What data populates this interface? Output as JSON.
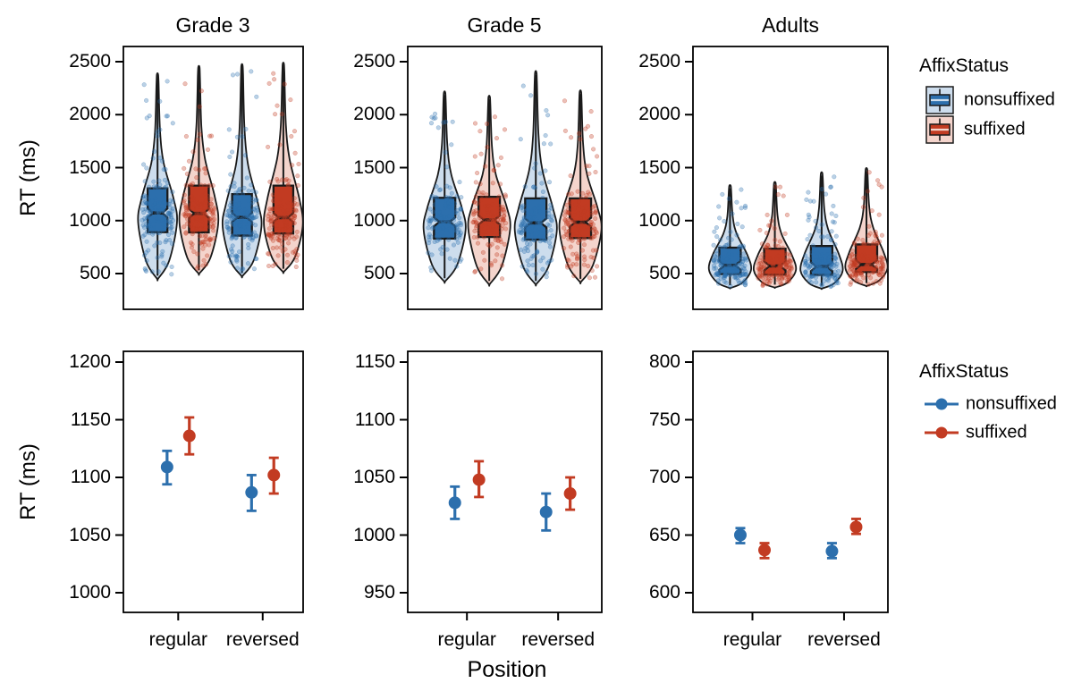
{
  "colors": {
    "nonsuffixed": "#2c6fad",
    "suffixed": "#c23b22",
    "nonsuffixed_light": "#cddded",
    "suffixed_light": "#f4d4cc",
    "outline": "#1a1a1a",
    "text": "#000000",
    "background": "#ffffff"
  },
  "legend_violin": {
    "title": "AffixStatus",
    "items": [
      {
        "label": "nonsuffixed",
        "series": "nonsuffixed"
      },
      {
        "label": "suffixed",
        "series": "suffixed"
      }
    ]
  },
  "legend_points": {
    "title": "AffixStatus",
    "items": [
      {
        "label": "nonsuffixed",
        "series": "nonsuffixed"
      },
      {
        "label": "suffixed",
        "series": "suffixed"
      }
    ]
  },
  "chart_data": {
    "type": "grid: top row violin+notched-boxplot+jitter, bottom row pointrange",
    "xlabel": "Position",
    "ylabel": "RT (ms)",
    "x_categories": [
      "regular",
      "reversed"
    ],
    "series": [
      "nonsuffixed",
      "suffixed"
    ],
    "violin_panels": [
      {
        "title": "Grade 3",
        "yticks": [
          500,
          1000,
          1500,
          2000,
          2500
        ],
        "violins": [
          {
            "position": "regular",
            "series": "nonsuffixed",
            "min": 455,
            "q1": 890,
            "median": 1072,
            "q3": 1305,
            "max": 2380
          },
          {
            "position": "regular",
            "series": "suffixed",
            "min": 505,
            "q1": 888,
            "median": 1068,
            "q3": 1330,
            "max": 2450
          },
          {
            "position": "reversed",
            "series": "nonsuffixed",
            "min": 480,
            "q1": 858,
            "median": 1030,
            "q3": 1250,
            "max": 2465
          },
          {
            "position": "reversed",
            "series": "suffixed",
            "min": 520,
            "q1": 878,
            "median": 1028,
            "q3": 1330,
            "max": 2480
          }
        ]
      },
      {
        "title": "Grade 5",
        "yticks": [
          500,
          1000,
          1500,
          2000,
          2500
        ],
        "violins": [
          {
            "position": "regular",
            "series": "nonsuffixed",
            "min": 430,
            "q1": 830,
            "median": 988,
            "q3": 1215,
            "max": 2210
          },
          {
            "position": "regular",
            "series": "suffixed",
            "min": 405,
            "q1": 845,
            "median": 1005,
            "q3": 1225,
            "max": 2170
          },
          {
            "position": "reversed",
            "series": "nonsuffixed",
            "min": 405,
            "q1": 820,
            "median": 978,
            "q3": 1210,
            "max": 2400
          },
          {
            "position": "reversed",
            "series": "suffixed",
            "min": 425,
            "q1": 835,
            "median": 985,
            "q3": 1210,
            "max": 2220
          }
        ]
      },
      {
        "title": "Adults",
        "yticks": [
          500,
          1000,
          1500,
          2000,
          2500
        ],
        "violins": [
          {
            "position": "regular",
            "series": "nonsuffixed",
            "min": 365,
            "q1": 495,
            "median": 578,
            "q3": 745,
            "max": 1330
          },
          {
            "position": "regular",
            "series": "suffixed",
            "min": 370,
            "q1": 490,
            "median": 572,
            "q3": 735,
            "max": 1360
          },
          {
            "position": "reversed",
            "series": "nonsuffixed",
            "min": 360,
            "q1": 488,
            "median": 565,
            "q3": 760,
            "max": 1450
          },
          {
            "position": "reversed",
            "series": "suffixed",
            "min": 385,
            "q1": 515,
            "median": 585,
            "q3": 775,
            "max": 1490
          }
        ]
      }
    ],
    "pointrange_panels": [
      {
        "title": "Grade 3",
        "yticks": [
          1000,
          1050,
          1100,
          1150,
          1200
        ],
        "points": [
          {
            "position": "regular",
            "series": "nonsuffixed",
            "mean": 1109,
            "lower": 1094,
            "upper": 1123
          },
          {
            "position": "regular",
            "series": "suffixed",
            "mean": 1136,
            "lower": 1120,
            "upper": 1152
          },
          {
            "position": "reversed",
            "series": "nonsuffixed",
            "mean": 1087,
            "lower": 1071,
            "upper": 1102
          },
          {
            "position": "reversed",
            "series": "suffixed",
            "mean": 1102,
            "lower": 1086,
            "upper": 1117
          }
        ]
      },
      {
        "title": "Grade 5",
        "yticks": [
          950,
          1000,
          1050,
          1100,
          1150
        ],
        "points": [
          {
            "position": "regular",
            "series": "nonsuffixed",
            "mean": 1028,
            "lower": 1014,
            "upper": 1042
          },
          {
            "position": "regular",
            "series": "suffixed",
            "mean": 1048,
            "lower": 1033,
            "upper": 1064
          },
          {
            "position": "reversed",
            "series": "nonsuffixed",
            "mean": 1020,
            "lower": 1004,
            "upper": 1036
          },
          {
            "position": "reversed",
            "series": "suffixed",
            "mean": 1036,
            "lower": 1022,
            "upper": 1050
          }
        ]
      },
      {
        "title": "Adults",
        "yticks": [
          600,
          650,
          700,
          750,
          800
        ],
        "points": [
          {
            "position": "regular",
            "series": "nonsuffixed",
            "mean": 650,
            "lower": 643,
            "upper": 656
          },
          {
            "position": "regular",
            "series": "suffixed",
            "mean": 637,
            "lower": 630,
            "upper": 643
          },
          {
            "position": "reversed",
            "series": "nonsuffixed",
            "mean": 636,
            "lower": 630,
            "upper": 643
          },
          {
            "position": "reversed",
            "series": "suffixed",
            "mean": 657,
            "lower": 651,
            "upper": 664
          }
        ]
      }
    ]
  }
}
